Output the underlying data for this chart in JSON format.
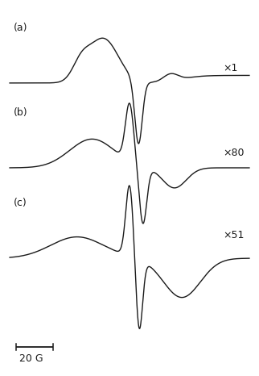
{
  "background_color": "#ffffff",
  "line_color": "#1a1a1a",
  "line_width": 1.0,
  "label_a": "(a)",
  "label_b": "(b)",
  "label_c": "(c)",
  "scale_label": "20 G",
  "mult_a": "×1",
  "mult_b": "×80",
  "mult_c": "×51",
  "figsize": [
    3.22,
    4.66
  ],
  "dpi": 100
}
